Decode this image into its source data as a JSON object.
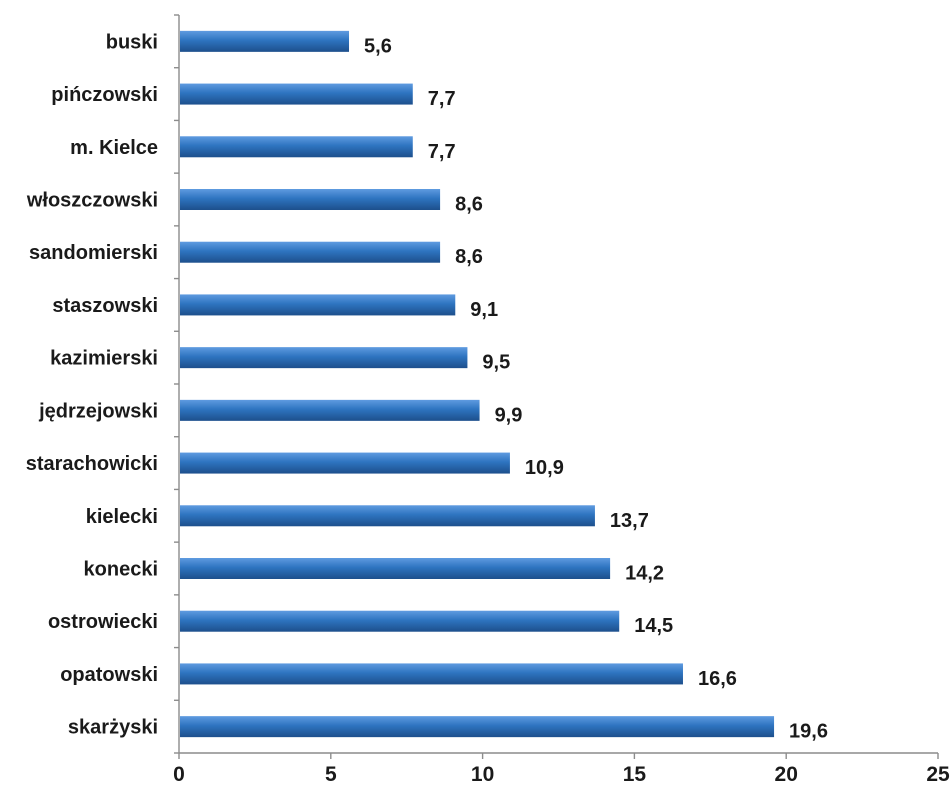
{
  "chart_data": {
    "type": "bar",
    "orientation": "horizontal",
    "title": "",
    "xlabel": "",
    "ylabel": "",
    "categories": [
      "buski",
      "pińczowski",
      "m. Kielce",
      "włoszczowski",
      "sandomierski",
      "staszowski",
      "kazimierski",
      "jędrzejowski",
      "starachowicki",
      "kielecki",
      "konecki",
      "ostrowiecki",
      "opatowski",
      "skarżyski"
    ],
    "values": [
      5.6,
      7.7,
      7.7,
      8.6,
      8.6,
      9.1,
      9.5,
      9.9,
      10.9,
      13.7,
      14.2,
      14.5,
      16.6,
      19.6
    ],
    "value_labels": [
      "5,6",
      "7,7",
      "7,7",
      "8,6",
      "8,6",
      "9,1",
      "9,5",
      "9,9",
      "10,9",
      "13,7",
      "14,2",
      "14,5",
      "16,6",
      "19,6"
    ],
    "xlim": [
      0,
      25
    ],
    "xticks": [
      0,
      5,
      10,
      15,
      20,
      25
    ],
    "xtick_labels": [
      "0",
      "5",
      "10",
      "15",
      "20",
      "25"
    ],
    "grid": false,
    "legend": "none",
    "bar_color": "#2e74c0",
    "bar_highlight": "#5f9be0",
    "bar_shadow": "#1d4f8c"
  }
}
